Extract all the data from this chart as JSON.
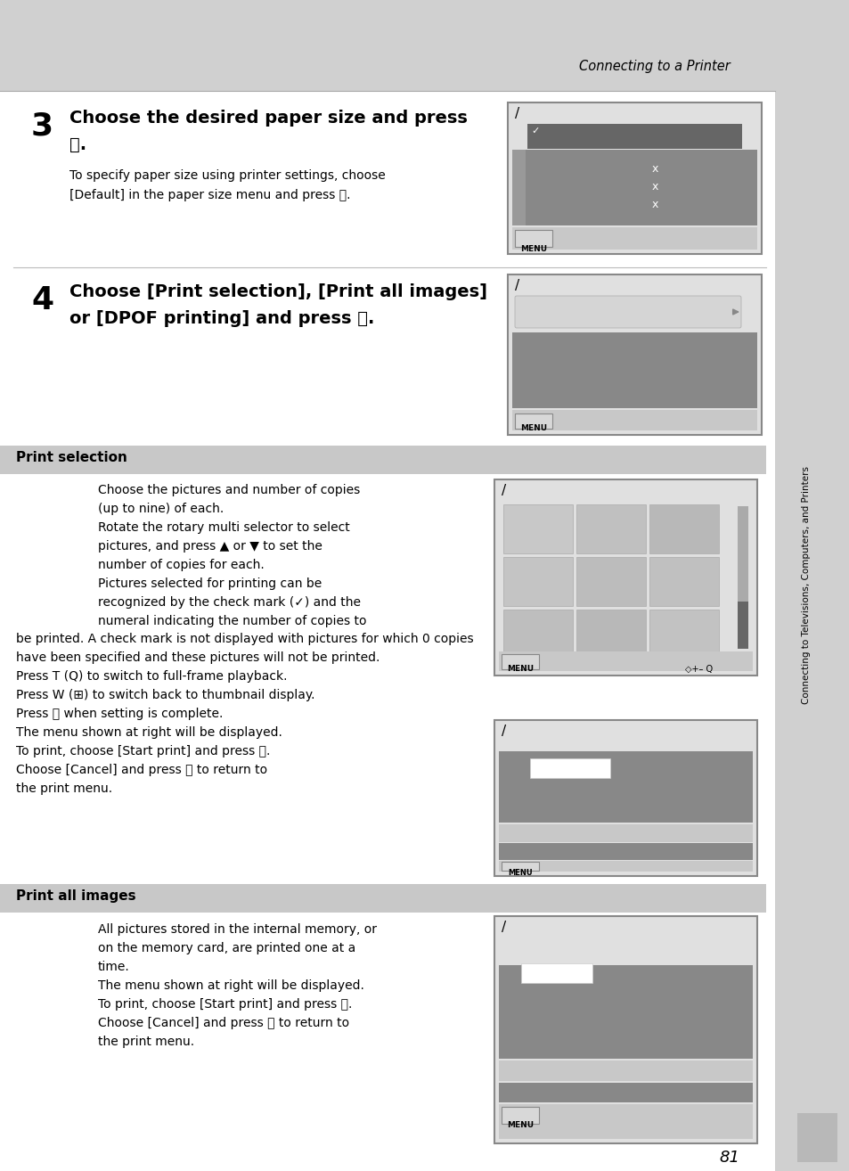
{
  "bg_color": "#d0d0d0",
  "page_bg": "#ffffff",
  "header_text": "Connecting to a Printer",
  "footer_number": "81",
  "sidebar_text": "Connecting to Televisions, Computers, and Printers",
  "step3_num": "3",
  "step3_line1": "Choose the desired paper size and press",
  "step3_line2": "⒪.",
  "step3_body1": "To specify paper size using printer settings, choose",
  "step3_body2": "[Default] in the paper size menu and press ⒪.",
  "step4_num": "4",
  "step4_line1": "Choose [Print selection], [Print all images]",
  "step4_line2": "or [DPOF printing] and press ⒪.",
  "section1_title": "Print selection",
  "sec1_lines": [
    "Choose the pictures and number of copies",
    "(up to nine) of each.",
    "Rotate the rotary multi selector to select",
    "pictures, and press ▲ or ▼ to set the",
    "number of copies for each.",
    "Pictures selected for printing can be",
    "recognized by the check mark (✓) and the",
    "numeral indicating the number of copies to"
  ],
  "sec1_long1": "be printed. A check mark is not displayed with pictures for which 0 copies",
  "sec1_long2": "have been specified and these pictures will not be printed.",
  "sec1_press1": "Press T (Q) to switch to full-frame playback.",
  "sec1_press2": "Press W (⊞) to switch back to thumbnail display.",
  "sec1_press3": "Press ⒪ when setting is complete.",
  "sec1_menu1": "The menu shown at right will be displayed.",
  "sec1_menu2": "To print, choose [Start print] and press ⒪.",
  "sec1_menu3": "Choose [Cancel] and press ⒪ to return to",
  "sec1_menu4": "the print menu.",
  "section2_title": "Print all images",
  "sec2_lines": [
    "All pictures stored in the internal memory, or",
    "on the memory card, are printed one at a",
    "time.",
    "The menu shown at right will be displayed.",
    "To print, choose [Start print] and press ⒪.",
    "Choose [Cancel] and press ⒪ to return to",
    "the print menu."
  ]
}
